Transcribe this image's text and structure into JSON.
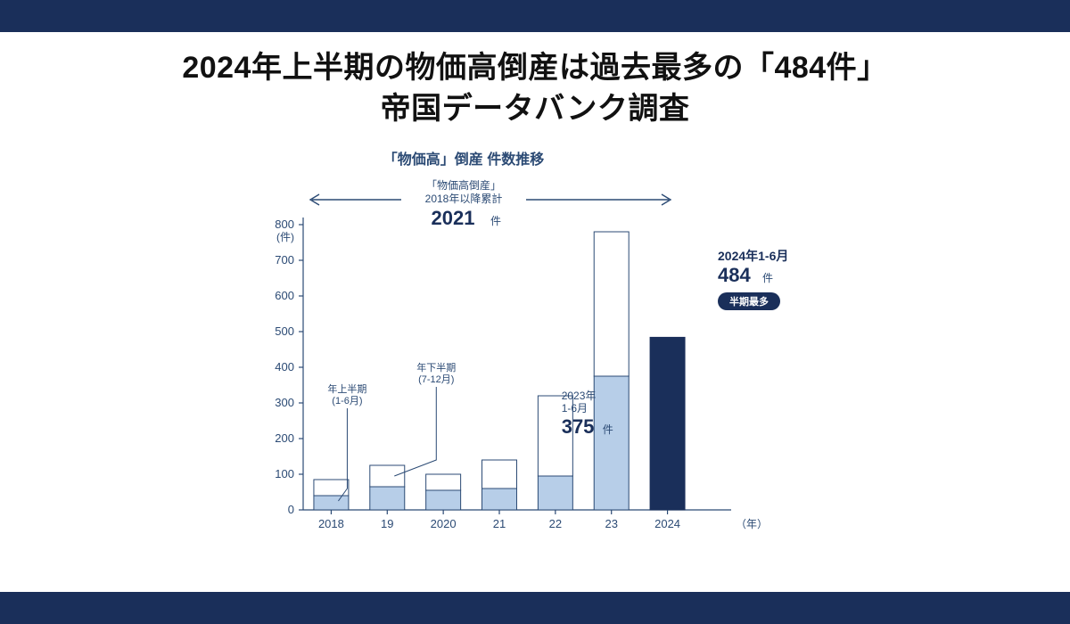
{
  "headline": {
    "line1": "2024年上半期の物価高倒産は過去最多の「484件」",
    "line2": "帝国データバンク調査"
  },
  "chart": {
    "type": "stacked-bar",
    "title": "「物価高」倒産 件数推移",
    "cumulative_label_line1": "「物価高倒産」",
    "cumulative_label_line2": "2018年以降累計",
    "cumulative_value": "2021",
    "cumulative_unit": "件",
    "y_axis_unit1": "800",
    "y_axis_unit2": "(件)",
    "x_axis_unit": "（年）",
    "y_ticks": [
      0,
      100,
      200,
      300,
      400,
      500,
      600,
      700,
      800
    ],
    "categories": [
      "2018",
      "19",
      "2020",
      "21",
      "22",
      "23",
      "2024"
    ],
    "series_h1_label_line1": "年上半期",
    "series_h1_label_line2": "(1-6月)",
    "series_h2_label_line1": "年下半期",
    "series_h2_label_line2": "(7-12月)",
    "h1_values": [
      40,
      65,
      55,
      60,
      95,
      375,
      484
    ],
    "h2_values": [
      45,
      60,
      45,
      80,
      225,
      405,
      0
    ],
    "bar_h1_fill": "#b7cee8",
    "bar_h2_fill": "#ffffff",
    "bar_solid_fill": "#1a2f5a",
    "axis_color": "#2b4a74",
    "callout_2023_line1": "2023年",
    "callout_2023_line2": "1-6月",
    "callout_2023_value": "375",
    "callout_2023_unit": "件",
    "callout_2024_line1": "2024年1-6月",
    "callout_2024_value": "484",
    "callout_2024_unit": "件",
    "pill_text": "半期最多"
  }
}
